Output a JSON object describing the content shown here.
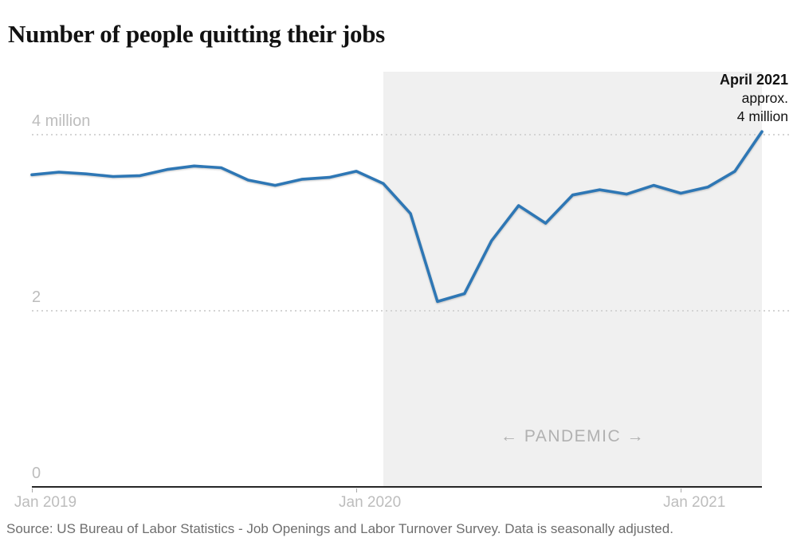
{
  "title": "Number of people quitting their jobs",
  "source": "Source: US Bureau of Labor Statistics - Job Openings and Labor Turnover Survey. Data is seasonally adjusted.",
  "annotation": {
    "label": "April 2021",
    "detail_1": "approx.",
    "detail_2": "4 million"
  },
  "pandemic_label": "← PANDEMIC →",
  "y_axis": {
    "labels": [
      {
        "text": "4 million",
        "value": 4
      },
      {
        "text": "2",
        "value": 2
      },
      {
        "text": "0",
        "value": 0
      }
    ]
  },
  "x_axis": {
    "ticks": [
      {
        "label": "Jan 2019",
        "month_index": 0
      },
      {
        "label": "Jan 2020",
        "month_index": 12
      },
      {
        "label": "Jan 2021",
        "month_index": 24
      }
    ]
  },
  "colors": {
    "line": "#2e77b5",
    "shading": "#f0f0f0",
    "grid": "#d4d4d4",
    "axis_label": "#bdbdbd",
    "axis_line": "#262626",
    "pandemic_text": "#b1b1b1",
    "annotation_text": "#121212",
    "source_text": "#6e6e6e"
  },
  "chart_data": {
    "type": "line",
    "title": "Number of people quitting their jobs",
    "unit": "millions of people",
    "x": [
      "Jan 2019",
      "Feb 2019",
      "Mar 2019",
      "Apr 2019",
      "May 2019",
      "Jun 2019",
      "Jul 2019",
      "Aug 2019",
      "Sep 2019",
      "Oct 2019",
      "Nov 2019",
      "Dec 2019",
      "Jan 2020",
      "Feb 2020",
      "Mar 2020",
      "Apr 2020",
      "May 2020",
      "Jun 2020",
      "Jul 2020",
      "Aug 2020",
      "Sep 2020",
      "Oct 2020",
      "Nov 2020",
      "Dec 2020",
      "Jan 2021",
      "Feb 2021",
      "Mar 2021",
      "Apr 2021"
    ],
    "values": [
      3.54,
      3.57,
      3.55,
      3.52,
      3.53,
      3.6,
      3.64,
      3.62,
      3.48,
      3.42,
      3.49,
      3.51,
      3.58,
      3.44,
      3.1,
      2.1,
      2.19,
      2.79,
      3.19,
      2.99,
      3.31,
      3.37,
      3.32,
      3.42,
      3.33,
      3.4,
      3.58,
      4.03
    ],
    "ylim": [
      0,
      4.7
    ],
    "y_gridlines": [
      2,
      4
    ],
    "grid_style": "dashed",
    "legend": "none",
    "pandemic_region": {
      "start_month": "Feb 2020",
      "start_month_index": 13,
      "end": "chart right edge"
    }
  }
}
